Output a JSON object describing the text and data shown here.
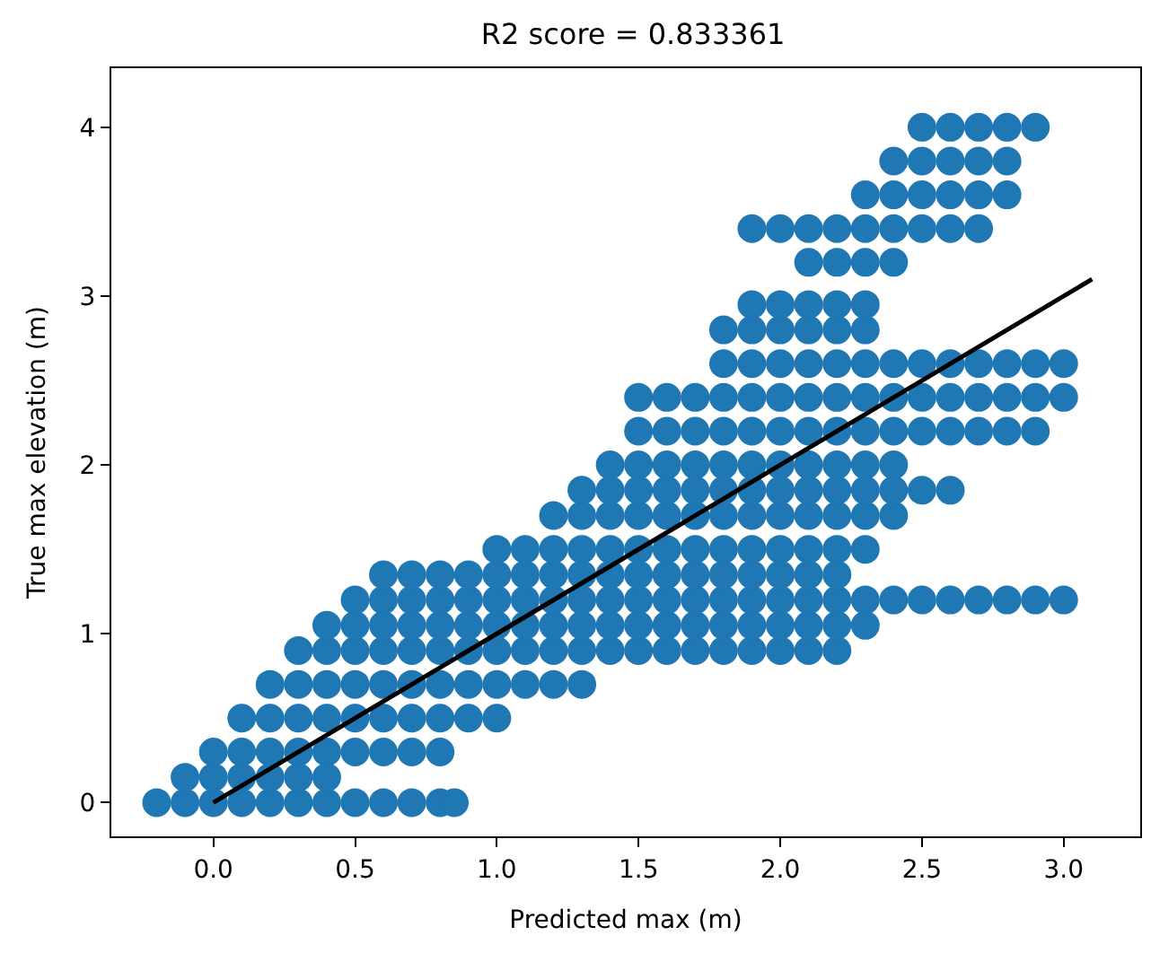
{
  "chart_data": {
    "type": "scatter",
    "title": "R2 score = 0.833361",
    "xlabel": "Predicted max (m)",
    "ylabel": "True max elevation (m)",
    "xlim": [
      -0.36,
      3.27
    ],
    "ylim": [
      -0.2,
      4.35
    ],
    "xticks": [
      {
        "value": 0,
        "label": "0.0"
      },
      {
        "value": 0.5,
        "label": "0.5"
      },
      {
        "value": 1,
        "label": "1.0"
      },
      {
        "value": 1.5,
        "label": "1.5"
      },
      {
        "value": 2,
        "label": "2.0"
      },
      {
        "value": 2.5,
        "label": "2.5"
      },
      {
        "value": 3,
        "label": "3.0"
      }
    ],
    "yticks": [
      0,
      1,
      2,
      3,
      4
    ],
    "marker": "circle",
    "series": [
      {
        "color": "#1f77b4",
        "x": [
          -0.2,
          -0.1,
          0,
          0.1,
          0.2,
          0.3,
          0.4,
          0.5,
          0.6,
          0.7,
          0.8,
          0.85
        ],
        "values": [
          0,
          0,
          0,
          0,
          0,
          0,
          0,
          0,
          0,
          0,
          0,
          0
        ]
      },
      {
        "color": "#1f77b4",
        "x": [
          -0.1,
          0,
          0.1,
          0.2,
          0.3,
          0.4
        ],
        "values": [
          0.15,
          0.15,
          0.15,
          0.15,
          0.15,
          0.15
        ]
      },
      {
        "color": "#1f77b4",
        "x": [
          0,
          0.1,
          0.2,
          0.3,
          0.4,
          0.5,
          0.6,
          0.7,
          0.8
        ],
        "values": [
          0.3,
          0.3,
          0.3,
          0.3,
          0.3,
          0.3,
          0.3,
          0.3,
          0.3
        ]
      },
      {
        "color": "#1f77b4",
        "x": [
          0.1,
          0.2,
          0.3,
          0.4,
          0.5,
          0.6,
          0.7,
          0.8,
          0.9,
          1
        ],
        "values": [
          0.5,
          0.5,
          0.5,
          0.5,
          0.5,
          0.5,
          0.5,
          0.5,
          0.5,
          0.5
        ]
      },
      {
        "color": "#1f77b4",
        "x": [
          0.2,
          0.3,
          0.4,
          0.5,
          0.6,
          0.7,
          0.8,
          0.9,
          1,
          1.1,
          1.2,
          1.3
        ],
        "values": [
          0.7,
          0.7,
          0.7,
          0.7,
          0.7,
          0.7,
          0.7,
          0.7,
          0.7,
          0.7,
          0.7,
          0.7
        ]
      },
      {
        "color": "#1f77b4",
        "x": [
          0.3,
          0.4,
          0.5,
          0.6,
          0.7,
          0.8,
          0.9,
          1,
          1.1,
          1.2,
          1.3,
          1.4,
          1.5,
          1.6,
          1.7,
          1.8,
          1.9,
          2,
          2.1,
          2.2
        ],
        "values": [
          0.9,
          0.9,
          0.9,
          0.9,
          0.9,
          0.9,
          0.9,
          0.9,
          0.9,
          0.9,
          0.9,
          0.9,
          0.9,
          0.9,
          0.9,
          0.9,
          0.9,
          0.9,
          0.9,
          0.9
        ]
      },
      {
        "color": "#1f77b4",
        "x": [
          0.4,
          0.5,
          0.6,
          0.7,
          0.8,
          0.9,
          1,
          1.1,
          1.2,
          1.3,
          1.4,
          1.5,
          1.6,
          1.7,
          1.8,
          1.9,
          2,
          2.1,
          2.2,
          2.3
        ],
        "values": [
          1.05,
          1.05,
          1.05,
          1.05,
          1.05,
          1.05,
          1.05,
          1.05,
          1.05,
          1.05,
          1.05,
          1.05,
          1.05,
          1.05,
          1.05,
          1.05,
          1.05,
          1.05,
          1.05,
          1.05
        ]
      },
      {
        "color": "#1f77b4",
        "x": [
          0.5,
          0.6,
          0.7,
          0.8,
          0.9,
          1,
          1.1,
          1.2,
          1.3,
          1.4,
          1.5,
          1.6,
          1.7,
          1.8,
          1.9,
          2,
          2.1,
          2.2,
          2.3,
          2.4,
          2.5,
          2.6,
          2.7,
          2.8,
          2.9,
          3
        ],
        "values": [
          1.2,
          1.2,
          1.2,
          1.2,
          1.2,
          1.2,
          1.2,
          1.2,
          1.2,
          1.2,
          1.2,
          1.2,
          1.2,
          1.2,
          1.2,
          1.2,
          1.2,
          1.2,
          1.2,
          1.2,
          1.2,
          1.2,
          1.2,
          1.2,
          1.2,
          1.2
        ]
      },
      {
        "color": "#1f77b4",
        "x": [
          0.6,
          0.7,
          0.8,
          0.9,
          1,
          1.1,
          1.2,
          1.3,
          1.4,
          1.5,
          1.6,
          1.7,
          1.8,
          1.9,
          2,
          2.1,
          2.2
        ],
        "values": [
          1.35,
          1.35,
          1.35,
          1.35,
          1.35,
          1.35,
          1.35,
          1.35,
          1.35,
          1.35,
          1.35,
          1.35,
          1.35,
          1.35,
          1.35,
          1.35,
          1.35
        ]
      },
      {
        "color": "#1f77b4",
        "x": [
          1,
          1.1,
          1.2,
          1.3,
          1.4,
          1.5,
          1.6,
          1.7,
          1.8,
          1.9,
          2,
          2.1,
          2.2,
          2.3
        ],
        "values": [
          1.5,
          1.5,
          1.5,
          1.5,
          1.5,
          1.5,
          1.5,
          1.5,
          1.5,
          1.5,
          1.5,
          1.5,
          1.5,
          1.5
        ]
      },
      {
        "color": "#1f77b4",
        "x": [
          1.2,
          1.3,
          1.4,
          1.5,
          1.6,
          1.7,
          1.8,
          1.9,
          2,
          2.1,
          2.2,
          2.3,
          2.4
        ],
        "values": [
          1.7,
          1.7,
          1.7,
          1.7,
          1.7,
          1.7,
          1.7,
          1.7,
          1.7,
          1.7,
          1.7,
          1.7,
          1.7
        ]
      },
      {
        "color": "#1f77b4",
        "x": [
          1.3,
          1.4,
          1.5,
          1.6,
          1.7,
          1.8,
          1.9,
          2,
          2.1,
          2.2,
          2.3,
          2.4,
          2.5,
          2.6
        ],
        "values": [
          1.85,
          1.85,
          1.85,
          1.85,
          1.85,
          1.85,
          1.85,
          1.85,
          1.85,
          1.85,
          1.85,
          1.85,
          1.85,
          1.85
        ]
      },
      {
        "color": "#1f77b4",
        "x": [
          1.4,
          1.5,
          1.6,
          1.7,
          1.8,
          1.9,
          2,
          2.1,
          2.2,
          2.3,
          2.4
        ],
        "values": [
          2,
          2,
          2,
          2,
          2,
          2,
          2,
          2,
          2,
          2,
          2
        ]
      },
      {
        "color": "#1f77b4",
        "x": [
          1.5,
          1.6,
          1.7,
          1.8,
          1.9,
          2,
          2.1,
          2.2,
          2.3,
          2.4,
          2.5,
          2.6,
          2.7,
          2.8,
          2.9
        ],
        "values": [
          2.2,
          2.2,
          2.2,
          2.2,
          2.2,
          2.2,
          2.2,
          2.2,
          2.2,
          2.2,
          2.2,
          2.2,
          2.2,
          2.2,
          2.2
        ]
      },
      {
        "color": "#1f77b4",
        "x": [
          1.5,
          1.6,
          1.7,
          1.8,
          1.9,
          2,
          2.1,
          2.2,
          2.3,
          2.4,
          2.5,
          2.6,
          2.7,
          2.8,
          2.9,
          3
        ],
        "values": [
          2.4,
          2.4,
          2.4,
          2.4,
          2.4,
          2.4,
          2.4,
          2.4,
          2.4,
          2.4,
          2.4,
          2.4,
          2.4,
          2.4,
          2.4,
          2.4
        ]
      },
      {
        "color": "#1f77b4",
        "x": [
          1.8,
          1.9,
          2,
          2.1,
          2.2,
          2.3,
          2.4,
          2.5,
          2.6,
          2.7,
          2.8,
          2.9,
          3
        ],
        "values": [
          2.6,
          2.6,
          2.6,
          2.6,
          2.6,
          2.6,
          2.6,
          2.6,
          2.6,
          2.6,
          2.6,
          2.6,
          2.6
        ]
      },
      {
        "color": "#1f77b4",
        "x": [
          1.8,
          1.9,
          2,
          2.1,
          2.2,
          2.3
        ],
        "values": [
          2.8,
          2.8,
          2.8,
          2.8,
          2.8,
          2.8
        ]
      },
      {
        "color": "#1f77b4",
        "x": [
          1.9,
          2,
          2.1,
          2.2,
          2.3
        ],
        "values": [
          2.95,
          2.95,
          2.95,
          2.95,
          2.95
        ]
      },
      {
        "color": "#1f77b4",
        "x": [
          2.1,
          2.2,
          2.3,
          2.4
        ],
        "values": [
          3.2,
          3.2,
          3.2,
          3.2
        ]
      },
      {
        "color": "#1f77b4",
        "x": [
          1.9,
          2,
          2.1,
          2.2,
          2.3,
          2.4,
          2.5,
          2.6,
          2.7
        ],
        "values": [
          3.4,
          3.4,
          3.4,
          3.4,
          3.4,
          3.4,
          3.4,
          3.4,
          3.4
        ]
      },
      {
        "color": "#1f77b4",
        "x": [
          2.3,
          2.4,
          2.5,
          2.6,
          2.7,
          2.8
        ],
        "values": [
          3.6,
          3.6,
          3.6,
          3.6,
          3.6,
          3.6
        ]
      },
      {
        "color": "#1f77b4",
        "x": [
          2.4,
          2.5,
          2.6,
          2.7,
          2.8
        ],
        "values": [
          3.8,
          3.8,
          3.8,
          3.8,
          3.8
        ]
      },
      {
        "color": "#1f77b4",
        "x": [
          2.5,
          2.6,
          2.7,
          2.8,
          2.9
        ],
        "values": [
          4,
          4,
          4,
          4,
          4
        ]
      },
      {
        "type": "line",
        "color": "#000000",
        "x": [
          0,
          3.1
        ],
        "values": [
          0,
          3.1
        ],
        "marker": "none"
      }
    ]
  }
}
